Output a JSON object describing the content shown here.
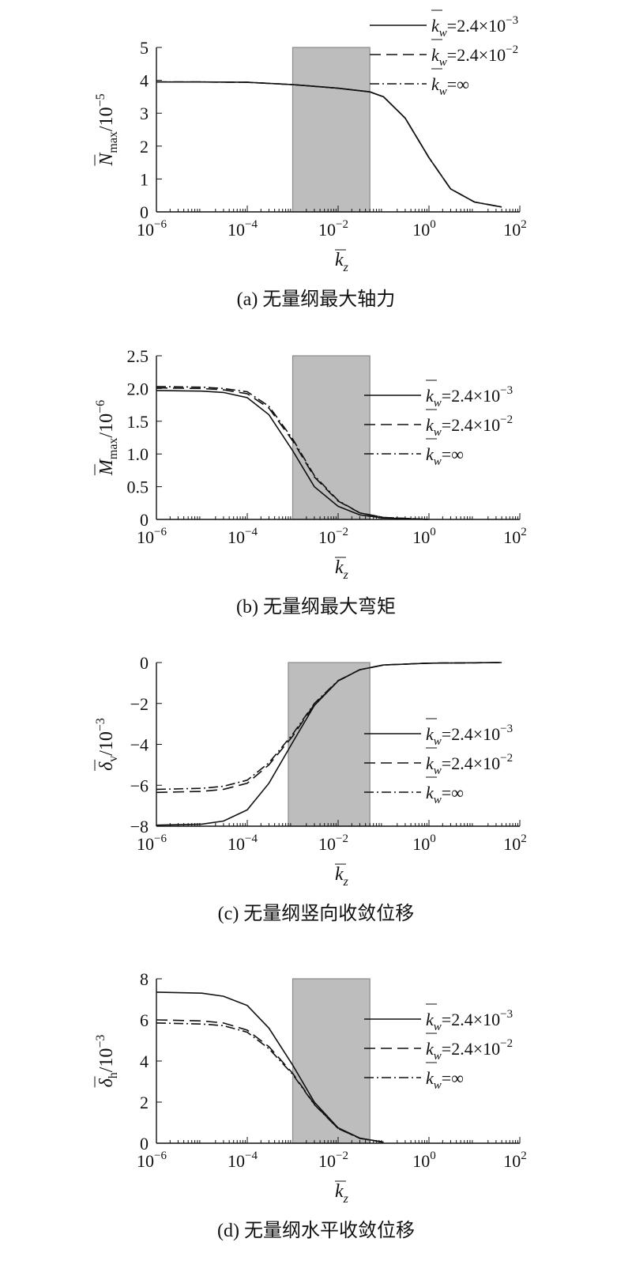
{
  "chart_data": [
    {
      "type": "line",
      "panel": "a",
      "caption": "(a) 无量纲最大轴力",
      "xlabel": "k_z",
      "ylabel_symbol": "N",
      "ylabel_sub": "max",
      "ylabel_unit": "/10",
      "ylabel_exp": "−5",
      "x_scale": "log",
      "xlim": [
        1e-06,
        100
      ],
      "ylim": [
        0,
        5
      ],
      "yticks": [
        0,
        1,
        2,
        3,
        4,
        5
      ],
      "ytick_labels": [
        "0",
        "1",
        "2",
        "3",
        "4",
        "5"
      ],
      "xticks": [
        {
          "base": "10",
          "exp": "−6",
          "value": 1e-06
        },
        {
          "base": "10",
          "exp": "−4",
          "value": 0.0001
        },
        {
          "base": "10",
          "exp": "−2",
          "value": 0.01
        },
        {
          "base": "10",
          "exp": "0",
          "value": 1
        },
        {
          "base": "10",
          "exp": "2",
          "value": 100
        }
      ],
      "shaded_region": {
        "x": [
          0.001,
          0.05
        ],
        "y": [
          0,
          5
        ],
        "color": "#bdbdbd"
      },
      "legend_position": "top-right",
      "series": [
        {
          "name": "k_w=2.4×10^−3",
          "style": "solid",
          "x": [
            1e-06,
            1e-05,
            0.0001,
            0.001,
            0.01,
            0.05,
            0.1,
            0.3,
            1,
            3,
            10,
            40
          ],
          "y": [
            3.95,
            3.95,
            3.94,
            3.87,
            3.76,
            3.65,
            3.5,
            2.85,
            1.65,
            0.7,
            0.3,
            0.15
          ]
        },
        {
          "name": "k_w=2.4×10^−2",
          "style": "dashed",
          "x": [
            1e-06,
            1e-05,
            0.0001,
            0.001,
            0.01,
            0.05,
            0.1,
            0.3,
            1,
            3,
            10,
            40
          ],
          "y": [
            3.95,
            3.95,
            3.94,
            3.87,
            3.76,
            3.65,
            3.5,
            2.85,
            1.65,
            0.7,
            0.3,
            0.15
          ]
        },
        {
          "name": "k_w=∞",
          "style": "dashdot",
          "x": [
            1e-06,
            1e-05,
            0.0001,
            0.001,
            0.01,
            0.05,
            0.1,
            0.3,
            1,
            3,
            10,
            40
          ],
          "y": [
            3.95,
            3.95,
            3.94,
            3.87,
            3.76,
            3.65,
            3.5,
            2.85,
            1.65,
            0.7,
            0.3,
            0.15
          ]
        }
      ],
      "legend": [
        {
          "style": "solid",
          "value": "=2.4×10",
          "exp": "−3"
        },
        {
          "style": "dashed",
          "value": "=2.4×10",
          "exp": "−2"
        },
        {
          "style": "dashdot",
          "value": "=∞",
          "exp": ""
        }
      ]
    },
    {
      "type": "line",
      "panel": "b",
      "caption": "(b) 无量纲最大弯矩",
      "xlabel": "k_z",
      "ylabel_symbol": "M",
      "ylabel_sub": "max",
      "ylabel_unit": "/10",
      "ylabel_exp": "−6",
      "x_scale": "log",
      "xlim": [
        1e-06,
        100
      ],
      "ylim": [
        0,
        2.5
      ],
      "yticks": [
        0,
        0.5,
        1.0,
        1.5,
        2.0,
        2.5
      ],
      "ytick_labels": [
        "0",
        "0.5",
        "1.0",
        "1.5",
        "2.0",
        "2.5"
      ],
      "xticks": [
        {
          "base": "10",
          "exp": "−6",
          "value": 1e-06
        },
        {
          "base": "10",
          "exp": "−4",
          "value": 0.0001
        },
        {
          "base": "10",
          "exp": "−2",
          "value": 0.01
        },
        {
          "base": "10",
          "exp": "0",
          "value": 1
        },
        {
          "base": "10",
          "exp": "2",
          "value": 100
        }
      ],
      "shaded_region": {
        "x": [
          0.001,
          0.05
        ],
        "y": [
          0,
          2.5
        ],
        "color": "#bdbdbd"
      },
      "legend_position": "right",
      "series": [
        {
          "name": "k_w=2.4×10^−3",
          "style": "solid",
          "x": [
            1e-06,
            1e-05,
            3e-05,
            0.0001,
            0.0003,
            0.001,
            0.003,
            0.01,
            0.03,
            0.1,
            1
          ],
          "y": [
            1.97,
            1.96,
            1.94,
            1.86,
            1.6,
            1.05,
            0.5,
            0.2,
            0.07,
            0.02,
            0.0
          ]
        },
        {
          "name": "k_w=2.4×10^−2",
          "style": "dashed",
          "x": [
            1e-06,
            1e-05,
            3e-05,
            0.0001,
            0.0003,
            0.001,
            0.003,
            0.01,
            0.03,
            0.1,
            1
          ],
          "y": [
            2.01,
            2.0,
            1.98,
            1.92,
            1.7,
            1.2,
            0.65,
            0.28,
            0.1,
            0.03,
            0.0
          ]
        },
        {
          "name": "k_w=∞",
          "style": "dashdot",
          "x": [
            1e-06,
            1e-05,
            3e-05,
            0.0001,
            0.0003,
            0.001,
            0.003,
            0.01,
            0.03,
            0.1,
            1
          ],
          "y": [
            2.03,
            2.02,
            2.0,
            1.95,
            1.73,
            1.23,
            0.67,
            0.29,
            0.1,
            0.03,
            0.0
          ]
        }
      ],
      "legend": [
        {
          "style": "solid",
          "value": "=2.4×10",
          "exp": "−3"
        },
        {
          "style": "dashed",
          "value": "=2.4×10",
          "exp": "−2"
        },
        {
          "style": "dashdot",
          "value": "=∞",
          "exp": ""
        }
      ]
    },
    {
      "type": "line",
      "panel": "c",
      "caption": "(c) 无量纲竖向收敛位移",
      "xlabel": "k_z",
      "ylabel_symbol": "δ",
      "ylabel_sub": "v",
      "ylabel_unit": "/10",
      "ylabel_exp": "−3",
      "x_scale": "log",
      "xlim": [
        1e-06,
        100
      ],
      "ylim": [
        -8,
        0
      ],
      "yticks": [
        -8,
        -6,
        -4,
        -2,
        0
      ],
      "ytick_labels": [
        "−8",
        "−6",
        "−4",
        "−2",
        "0"
      ],
      "xticks": [
        {
          "base": "10",
          "exp": "−6",
          "value": 1e-06
        },
        {
          "base": "10",
          "exp": "−4",
          "value": 0.0001
        },
        {
          "base": "10",
          "exp": "−2",
          "value": 0.01
        },
        {
          "base": "10",
          "exp": "0",
          "value": 1
        },
        {
          "base": "10",
          "exp": "2",
          "value": 100
        }
      ],
      "shaded_region": {
        "x": [
          0.0008,
          0.05
        ],
        "y": [
          -8,
          0
        ],
        "color": "#bdbdbd"
      },
      "legend_position": "right",
      "series": [
        {
          "name": "k_w=2.4×10^−3",
          "style": "solid",
          "x": [
            1e-06,
            1e-05,
            3e-05,
            0.0001,
            0.0003,
            0.001,
            0.003,
            0.01,
            0.03,
            0.1,
            1,
            10,
            40
          ],
          "y": [
            -7.95,
            -7.9,
            -7.75,
            -7.2,
            -5.9,
            -3.9,
            -2.1,
            -0.9,
            -0.35,
            -0.12,
            -0.03,
            -0.01,
            0.0
          ]
        },
        {
          "name": "k_w=2.4×10^−2",
          "style": "dashed",
          "x": [
            1e-06,
            1e-05,
            3e-05,
            0.0001,
            0.0003,
            0.001,
            0.003,
            0.01,
            0.03,
            0.1,
            1,
            10,
            40
          ],
          "y": [
            -6.35,
            -6.3,
            -6.2,
            -5.9,
            -5.0,
            -3.6,
            -2.05,
            -0.9,
            -0.35,
            -0.12,
            -0.03,
            -0.01,
            0.0
          ]
        },
        {
          "name": "k_w=∞",
          "style": "dashdot",
          "x": [
            1e-06,
            1e-05,
            3e-05,
            0.0001,
            0.0003,
            0.001,
            0.003,
            0.01,
            0.03,
            0.1,
            1,
            10,
            40
          ],
          "y": [
            -6.2,
            -6.15,
            -6.05,
            -5.75,
            -4.9,
            -3.5,
            -2.0,
            -0.88,
            -0.35,
            -0.12,
            -0.03,
            -0.01,
            0.0
          ]
        }
      ],
      "legend": [
        {
          "style": "solid",
          "value": "=2.4×10",
          "exp": "−3"
        },
        {
          "style": "dashed",
          "value": "=2.4×10",
          "exp": "−2"
        },
        {
          "style": "dashdot",
          "value": "=∞",
          "exp": ""
        }
      ]
    },
    {
      "type": "line",
      "panel": "d",
      "caption": "(d) 无量纲水平收敛位移",
      "xlabel": "k_z",
      "ylabel_symbol": "δ",
      "ylabel_sub": "h",
      "ylabel_unit": "/10",
      "ylabel_exp": "−3",
      "x_scale": "log",
      "xlim": [
        1e-06,
        100
      ],
      "ylim": [
        0,
        8
      ],
      "yticks": [
        0,
        2,
        4,
        6,
        8
      ],
      "ytick_labels": [
        "0",
        "2",
        "4",
        "6",
        "8"
      ],
      "xticks": [
        {
          "base": "10",
          "exp": "−6",
          "value": 1e-06
        },
        {
          "base": "10",
          "exp": "−4",
          "value": 0.0001
        },
        {
          "base": "10",
          "exp": "−2",
          "value": 0.01
        },
        {
          "base": "10",
          "exp": "0",
          "value": 1
        },
        {
          "base": "10",
          "exp": "2",
          "value": 100
        }
      ],
      "shaded_region": {
        "x": [
          0.001,
          0.05
        ],
        "y": [
          0,
          8
        ],
        "color": "#bdbdbd"
      },
      "legend_position": "right",
      "series": [
        {
          "name": "k_w=2.4×10^−3",
          "style": "solid",
          "x": [
            1e-06,
            1e-05,
            3e-05,
            0.0001,
            0.0003,
            0.001,
            0.003,
            0.01,
            0.03,
            0.1
          ],
          "y": [
            7.35,
            7.3,
            7.15,
            6.7,
            5.6,
            3.8,
            2.0,
            0.75,
            0.25,
            0.05
          ]
        },
        {
          "name": "k_w=2.4×10^−2",
          "style": "dashed",
          "x": [
            1e-06,
            1e-05,
            3e-05,
            0.0001,
            0.0003,
            0.001,
            0.003,
            0.01,
            0.03,
            0.1
          ],
          "y": [
            6.0,
            5.95,
            5.85,
            5.5,
            4.7,
            3.4,
            1.9,
            0.72,
            0.24,
            0.05
          ]
        },
        {
          "name": "k_w=∞",
          "style": "dashdot",
          "x": [
            1e-06,
            1e-05,
            3e-05,
            0.0001,
            0.0003,
            0.001,
            0.003,
            0.01,
            0.03,
            0.1
          ],
          "y": [
            5.85,
            5.8,
            5.72,
            5.4,
            4.6,
            3.35,
            1.88,
            0.71,
            0.24,
            0.05
          ]
        }
      ],
      "legend": [
        {
          "style": "solid",
          "value": "=2.4×10",
          "exp": "−3"
        },
        {
          "style": "dashed",
          "value": "=2.4×10",
          "exp": "−2"
        },
        {
          "style": "dashdot",
          "value": "=∞",
          "exp": ""
        }
      ]
    }
  ]
}
